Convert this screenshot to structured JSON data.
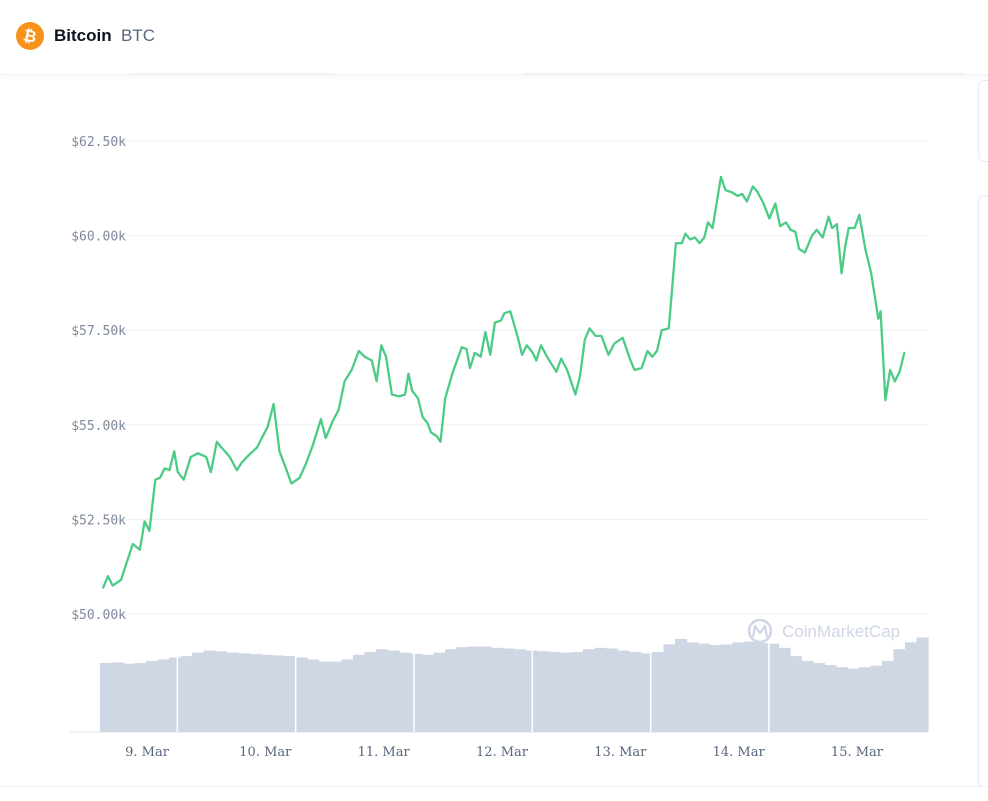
{
  "header": {
    "coin_name": "Bitcoin",
    "coin_symbol": "BTC",
    "logo_icon": "bitcoin-logo-icon",
    "logo_color": "#f7931a"
  },
  "watermark": {
    "text": "CoinMarketCap",
    "icon": "coinmarketcap-logo-icon"
  },
  "colors": {
    "price_line": "#4ccb86",
    "volume_bars": "#cfd6e4",
    "grid": "#eef0f4"
  },
  "chart_data": {
    "type": "line",
    "title": "",
    "xlabel": "",
    "ylabel": "",
    "ylim": [
      49500,
      63000
    ],
    "grid": true,
    "y_ticks": [
      50000,
      52500,
      55000,
      57500,
      60000,
      62500
    ],
    "y_tick_labels": [
      "$50.00k",
      "$52.50k",
      "$55.00k",
      "$57.50k",
      "$60.00k",
      "$62.50k"
    ],
    "x_ticks": [
      0,
      1,
      2,
      3,
      4,
      5,
      6
    ],
    "x_tick_labels": [
      "9. Mar",
      "10. Mar",
      "11. Mar",
      "12. Mar",
      "13. Mar",
      "14. Mar",
      "15. Mar"
    ],
    "series": [
      {
        "values": [
          [
            -0.37,
            50700
          ],
          [
            -0.33,
            51000
          ],
          [
            -0.29,
            50750
          ],
          [
            -0.22,
            50900
          ],
          [
            -0.12,
            51850
          ],
          [
            -0.06,
            51700
          ],
          [
            -0.02,
            52450
          ],
          [
            0.02,
            52200
          ],
          [
            0.07,
            53550
          ],
          [
            0.11,
            53600
          ],
          [
            0.15,
            53850
          ],
          [
            0.19,
            53800
          ],
          [
            0.23,
            54300
          ],
          [
            0.26,
            53750
          ],
          [
            0.31,
            53550
          ],
          [
            0.37,
            54150
          ],
          [
            0.43,
            54250
          ],
          [
            0.5,
            54150
          ],
          [
            0.54,
            53750
          ],
          [
            0.59,
            54550
          ],
          [
            0.63,
            54400
          ],
          [
            0.7,
            54150
          ],
          [
            0.76,
            53800
          ],
          [
            0.8,
            54000
          ],
          [
            0.86,
            54200
          ],
          [
            0.93,
            54400
          ],
          [
            1.02,
            54950
          ],
          [
            1.07,
            55550
          ],
          [
            1.12,
            54300
          ],
          [
            1.18,
            53800
          ],
          [
            1.22,
            53450
          ],
          [
            1.29,
            53600
          ],
          [
            1.34,
            53950
          ],
          [
            1.4,
            54450
          ],
          [
            1.47,
            55150
          ],
          [
            1.51,
            54650
          ],
          [
            1.57,
            55100
          ],
          [
            1.62,
            55400
          ],
          [
            1.67,
            56150
          ],
          [
            1.73,
            56450
          ],
          [
            1.79,
            56950
          ],
          [
            1.84,
            56800
          ],
          [
            1.9,
            56700
          ],
          [
            1.94,
            56150
          ],
          [
            1.98,
            57100
          ],
          [
            2.02,
            56800
          ],
          [
            2.07,
            55800
          ],
          [
            2.13,
            55750
          ],
          [
            2.18,
            55800
          ],
          [
            2.21,
            56350
          ],
          [
            2.24,
            55900
          ],
          [
            2.29,
            55700
          ],
          [
            2.33,
            55200
          ],
          [
            2.37,
            55050
          ],
          [
            2.4,
            54800
          ],
          [
            2.45,
            54700
          ],
          [
            2.48,
            54550
          ],
          [
            2.52,
            55700
          ],
          [
            2.58,
            56350
          ],
          [
            2.66,
            57050
          ],
          [
            2.7,
            57000
          ],
          [
            2.73,
            56500
          ],
          [
            2.77,
            56900
          ],
          [
            2.82,
            56800
          ],
          [
            2.86,
            57450
          ],
          [
            2.9,
            56850
          ],
          [
            2.94,
            57700
          ],
          [
            2.99,
            57750
          ],
          [
            3.02,
            57950
          ],
          [
            3.07,
            58000
          ],
          [
            3.13,
            57350
          ],
          [
            3.17,
            56850
          ],
          [
            3.21,
            57100
          ],
          [
            3.26,
            56900
          ],
          [
            3.29,
            56700
          ],
          [
            3.33,
            57100
          ],
          [
            3.38,
            56800
          ],
          [
            3.41,
            56650
          ],
          [
            3.46,
            56400
          ],
          [
            3.5,
            56750
          ],
          [
            3.55,
            56450
          ],
          [
            3.62,
            55800
          ],
          [
            3.66,
            56300
          ],
          [
            3.7,
            57250
          ],
          [
            3.74,
            57550
          ],
          [
            3.79,
            57350
          ],
          [
            3.84,
            57350
          ],
          [
            3.9,
            56850
          ],
          [
            3.95,
            57150
          ],
          [
            4.02,
            57300
          ],
          [
            4.08,
            56750
          ],
          [
            4.12,
            56450
          ],
          [
            4.18,
            56500
          ],
          [
            4.23,
            56950
          ],
          [
            4.27,
            56800
          ],
          [
            4.31,
            56950
          ],
          [
            4.35,
            57500
          ],
          [
            4.41,
            57550
          ],
          [
            4.47,
            59800
          ],
          [
            4.52,
            59800
          ],
          [
            4.55,
            60050
          ],
          [
            4.59,
            59900
          ],
          [
            4.63,
            59950
          ],
          [
            4.67,
            59800
          ],
          [
            4.71,
            59950
          ],
          [
            4.74,
            60350
          ],
          [
            4.78,
            60200
          ],
          [
            4.85,
            61550
          ],
          [
            4.89,
            61200
          ],
          [
            4.94,
            61150
          ],
          [
            4.99,
            61050
          ],
          [
            5.03,
            61100
          ],
          [
            5.07,
            60900
          ],
          [
            5.12,
            61300
          ],
          [
            5.16,
            61150
          ],
          [
            5.21,
            60850
          ],
          [
            5.26,
            60450
          ],
          [
            5.31,
            60850
          ],
          [
            5.35,
            60250
          ],
          [
            5.4,
            60350
          ],
          [
            5.44,
            60150
          ],
          [
            5.48,
            60100
          ],
          [
            5.51,
            59650
          ],
          [
            5.56,
            59550
          ],
          [
            5.62,
            60000
          ],
          [
            5.66,
            60150
          ],
          [
            5.71,
            59950
          ],
          [
            5.76,
            60500
          ],
          [
            5.79,
            60200
          ],
          [
            5.83,
            60300
          ],
          [
            5.87,
            59000
          ],
          [
            5.9,
            59700
          ],
          [
            5.93,
            60200
          ],
          [
            5.98,
            60200
          ],
          [
            6.02,
            60550
          ],
          [
            6.07,
            59650
          ],
          [
            6.12,
            59000
          ],
          [
            6.18,
            57800
          ],
          [
            6.2,
            58000
          ],
          [
            6.24,
            55650
          ],
          [
            6.28,
            56450
          ],
          [
            6.32,
            56150
          ],
          [
            6.36,
            56400
          ],
          [
            6.4,
            56900
          ]
        ]
      }
    ],
    "volume": {
      "values": [
        1.0,
        1.01,
        0.99,
        1.0,
        1.03,
        1.05,
        1.08,
        1.1,
        1.15,
        1.18,
        1.17,
        1.15,
        1.14,
        1.13,
        1.12,
        1.11,
        1.1,
        1.08,
        1.05,
        1.02,
        1.02,
        1.05,
        1.12,
        1.16,
        1.2,
        1.18,
        1.15,
        1.13,
        1.12,
        1.15,
        1.2,
        1.23,
        1.24,
        1.24,
        1.22,
        1.21,
        1.2,
        1.18,
        1.17,
        1.16,
        1.15,
        1.16,
        1.2,
        1.22,
        1.21,
        1.18,
        1.16,
        1.14,
        1.16,
        1.27,
        1.35,
        1.3,
        1.28,
        1.26,
        1.27,
        1.3,
        1.31,
        1.29,
        1.28,
        1.22,
        1.1,
        1.03,
        1.0,
        0.97,
        0.94,
        0.92,
        0.94,
        0.96,
        1.03,
        1.2,
        1.3,
        1.37
      ]
    }
  }
}
